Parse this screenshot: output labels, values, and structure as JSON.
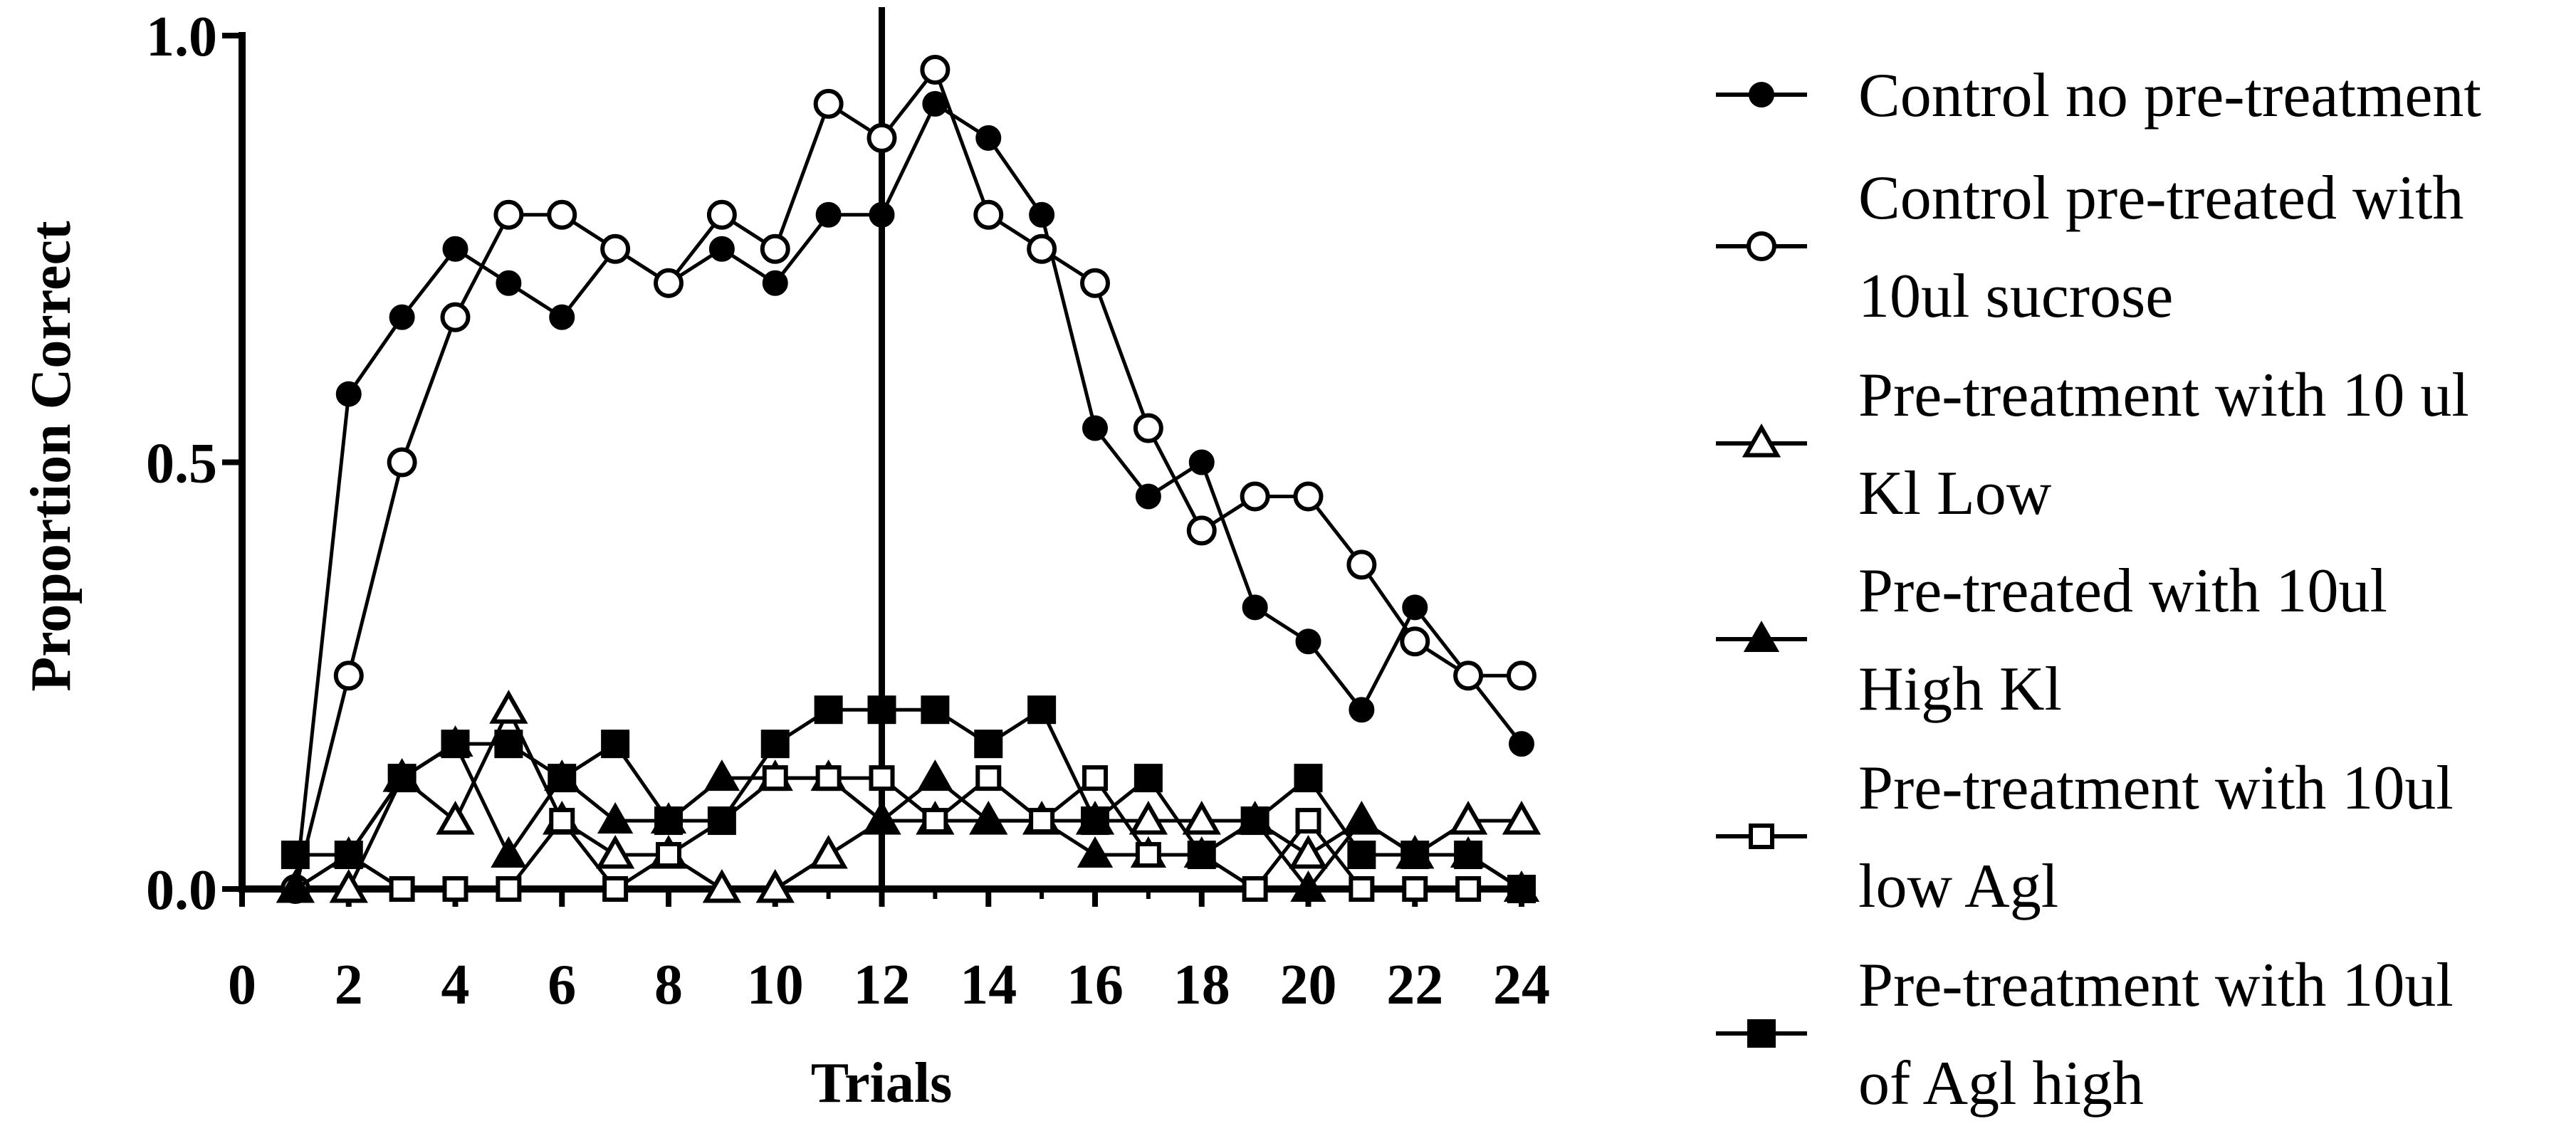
{
  "chart_data": {
    "type": "line",
    "title": "",
    "xlabel": "Trials",
    "ylabel": "Proportion Correct",
    "xlim": [
      0,
      24
    ],
    "ylim": [
      0,
      1
    ],
    "x_ticks": [
      0,
      2,
      4,
      6,
      8,
      10,
      12,
      14,
      16,
      18,
      20,
      22,
      24
    ],
    "x_tick_labels": [
      "0",
      "2",
      "4",
      "6",
      "8",
      "10",
      "12",
      "14",
      "16",
      "18",
      "20",
      "22",
      "24"
    ],
    "y_ticks": [
      0,
      0.5,
      1.0
    ],
    "y_tick_labels": [
      "0.0",
      "0.5",
      "1.0"
    ],
    "grid": false,
    "legend_position": "right",
    "reference_line": {
      "x": 12
    },
    "x": [
      1,
      2,
      3,
      4,
      5,
      6,
      7,
      8,
      9,
      10,
      11,
      12,
      13,
      14,
      15,
      16,
      17,
      18,
      19,
      20,
      21,
      22,
      23,
      24
    ],
    "series": [
      {
        "name": "Control no pre-treatment",
        "legend_lines": [
          "Control no pre-treatment"
        ],
        "marker": "circle-filled",
        "values": [
          0.0,
          0.58,
          0.67,
          0.75,
          0.71,
          0.67,
          0.75,
          0.71,
          0.75,
          0.71,
          0.79,
          0.79,
          0.92,
          0.88,
          0.79,
          0.54,
          0.46,
          0.5,
          0.33,
          0.29,
          0.21,
          0.33,
          0.25,
          0.17
        ]
      },
      {
        "name": "Control pre-treated with 10ul sucrose",
        "legend_lines": [
          "Control pre-treated with",
          "10ul sucrose"
        ],
        "marker": "circle-open",
        "values": [
          0.0,
          0.25,
          0.5,
          0.67,
          0.79,
          0.79,
          0.75,
          0.71,
          0.79,
          0.75,
          0.92,
          0.88,
          0.96,
          0.79,
          0.75,
          0.71,
          0.54,
          0.42,
          0.46,
          0.46,
          0.38,
          0.29,
          0.25,
          0.25
        ]
      },
      {
        "name": "Pre-treatment with 10 ul Kl Low",
        "legend_lines": [
          "Pre-treatment with 10 ul",
          "Kl Low"
        ],
        "marker": "triangle-open",
        "values": [
          0.0,
          0.0,
          0.13,
          0.08,
          0.21,
          0.08,
          0.04,
          0.04,
          0.0,
          0.0,
          0.04,
          0.08,
          0.08,
          0.08,
          0.08,
          0.08,
          0.08,
          0.08,
          0.08,
          0.04,
          0.08,
          0.04,
          0.08,
          0.08
        ]
      },
      {
        "name": "Pre-treated with 10ul High Kl",
        "legend_lines": [
          "Pre-treated with 10ul",
          "High Kl"
        ],
        "marker": "triangle-filled",
        "values": [
          0.0,
          0.04,
          0.13,
          0.17,
          0.04,
          0.13,
          0.08,
          0.08,
          0.13,
          0.13,
          0.13,
          0.08,
          0.13,
          0.08,
          0.08,
          0.04,
          0.04,
          0.04,
          0.08,
          0.0,
          0.08,
          0.04,
          0.04,
          0.0
        ]
      },
      {
        "name": "Pre-treatment with 10ul low Agl",
        "legend_lines": [
          "Pre-treatment with 10ul",
          "low Agl"
        ],
        "marker": "square-open",
        "values": [
          0.04,
          0.04,
          0.0,
          0.0,
          0.0,
          0.08,
          0.0,
          0.04,
          0.08,
          0.13,
          0.13,
          0.13,
          0.08,
          0.13,
          0.08,
          0.13,
          0.04,
          0.04,
          0.0,
          0.08,
          0.0,
          0.0,
          0.0,
          0.0
        ]
      },
      {
        "name": "Pre-treatment with 10ul of Agl high",
        "legend_lines": [
          "Pre-treatment with 10ul",
          "of Agl high"
        ],
        "marker": "square-filled",
        "values": [
          0.04,
          0.04,
          0.13,
          0.17,
          0.17,
          0.13,
          0.17,
          0.08,
          0.08,
          0.17,
          0.21,
          0.21,
          0.21,
          0.17,
          0.21,
          0.08,
          0.13,
          0.04,
          0.08,
          0.13,
          0.04,
          0.04,
          0.04,
          0.0
        ]
      }
    ]
  }
}
